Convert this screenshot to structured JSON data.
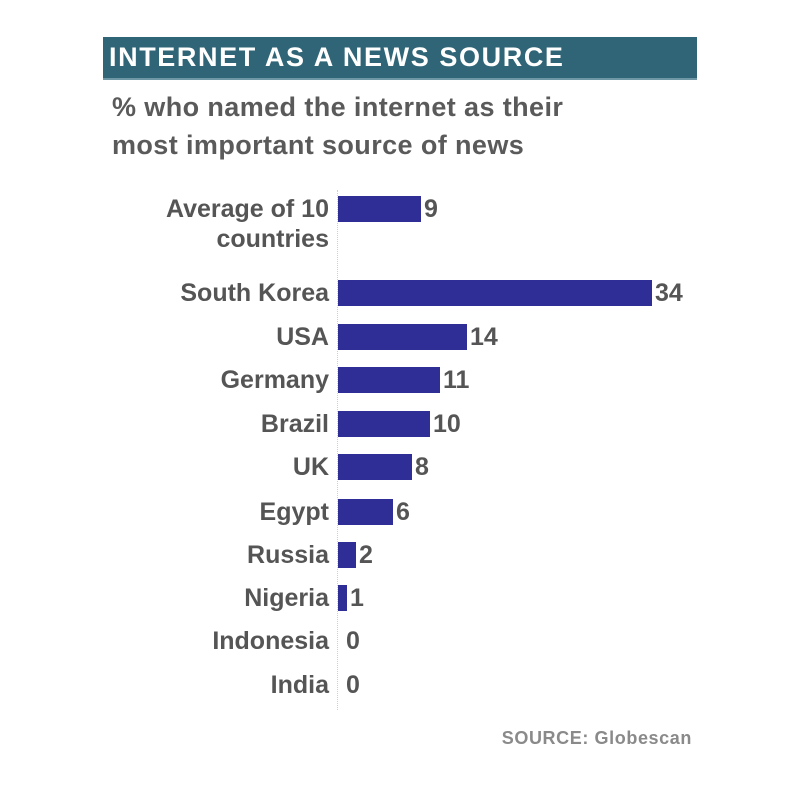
{
  "header": {
    "title": "INTERNET AS A NEWS SOURCE",
    "subtitle_line1": "% who named the internet as their",
    "subtitle_line2": "most important source of news"
  },
  "footer": {
    "source": "SOURCE: Globescan"
  },
  "colors": {
    "title_bar": "#2f6577",
    "bar": "#2e2e96",
    "text": "#555555",
    "source_text": "#8a8a8a"
  },
  "chart_data": {
    "type": "bar",
    "orientation": "horizontal",
    "title": "INTERNET AS A NEWS SOURCE",
    "subtitle": "% who named the internet as their most important source of news",
    "xlabel": "",
    "ylabel": "",
    "unit": "%",
    "categories": [
      "Average of 10 countries",
      "South Korea",
      "USA",
      "Germany",
      "Brazil",
      "UK",
      "Egypt",
      "Russia",
      "Nigeria",
      "Indonesia",
      "India"
    ],
    "values": [
      9,
      34,
      14,
      11,
      10,
      8,
      6,
      2,
      1,
      0,
      0
    ],
    "xlim": [
      0,
      34
    ],
    "grid": false,
    "legend": null,
    "data_labels": true,
    "source": "SOURCE: Globescan"
  },
  "rows": [
    {
      "label_line1": "Average of 10",
      "label_line2": "countries",
      "value": "9"
    },
    {
      "label": "South Korea",
      "value": "34"
    },
    {
      "label": "USA",
      "value": "14"
    },
    {
      "label": "Germany",
      "value": "11"
    },
    {
      "label": "Brazil",
      "value": "10"
    },
    {
      "label": "UK",
      "value": "8"
    },
    {
      "label": "Egypt",
      "value": "6"
    },
    {
      "label": "Russia",
      "value": "2"
    },
    {
      "label": "Nigeria",
      "value": "1"
    },
    {
      "label": "Indonesia",
      "value": "0"
    },
    {
      "label": "India",
      "value": "0"
    }
  ]
}
